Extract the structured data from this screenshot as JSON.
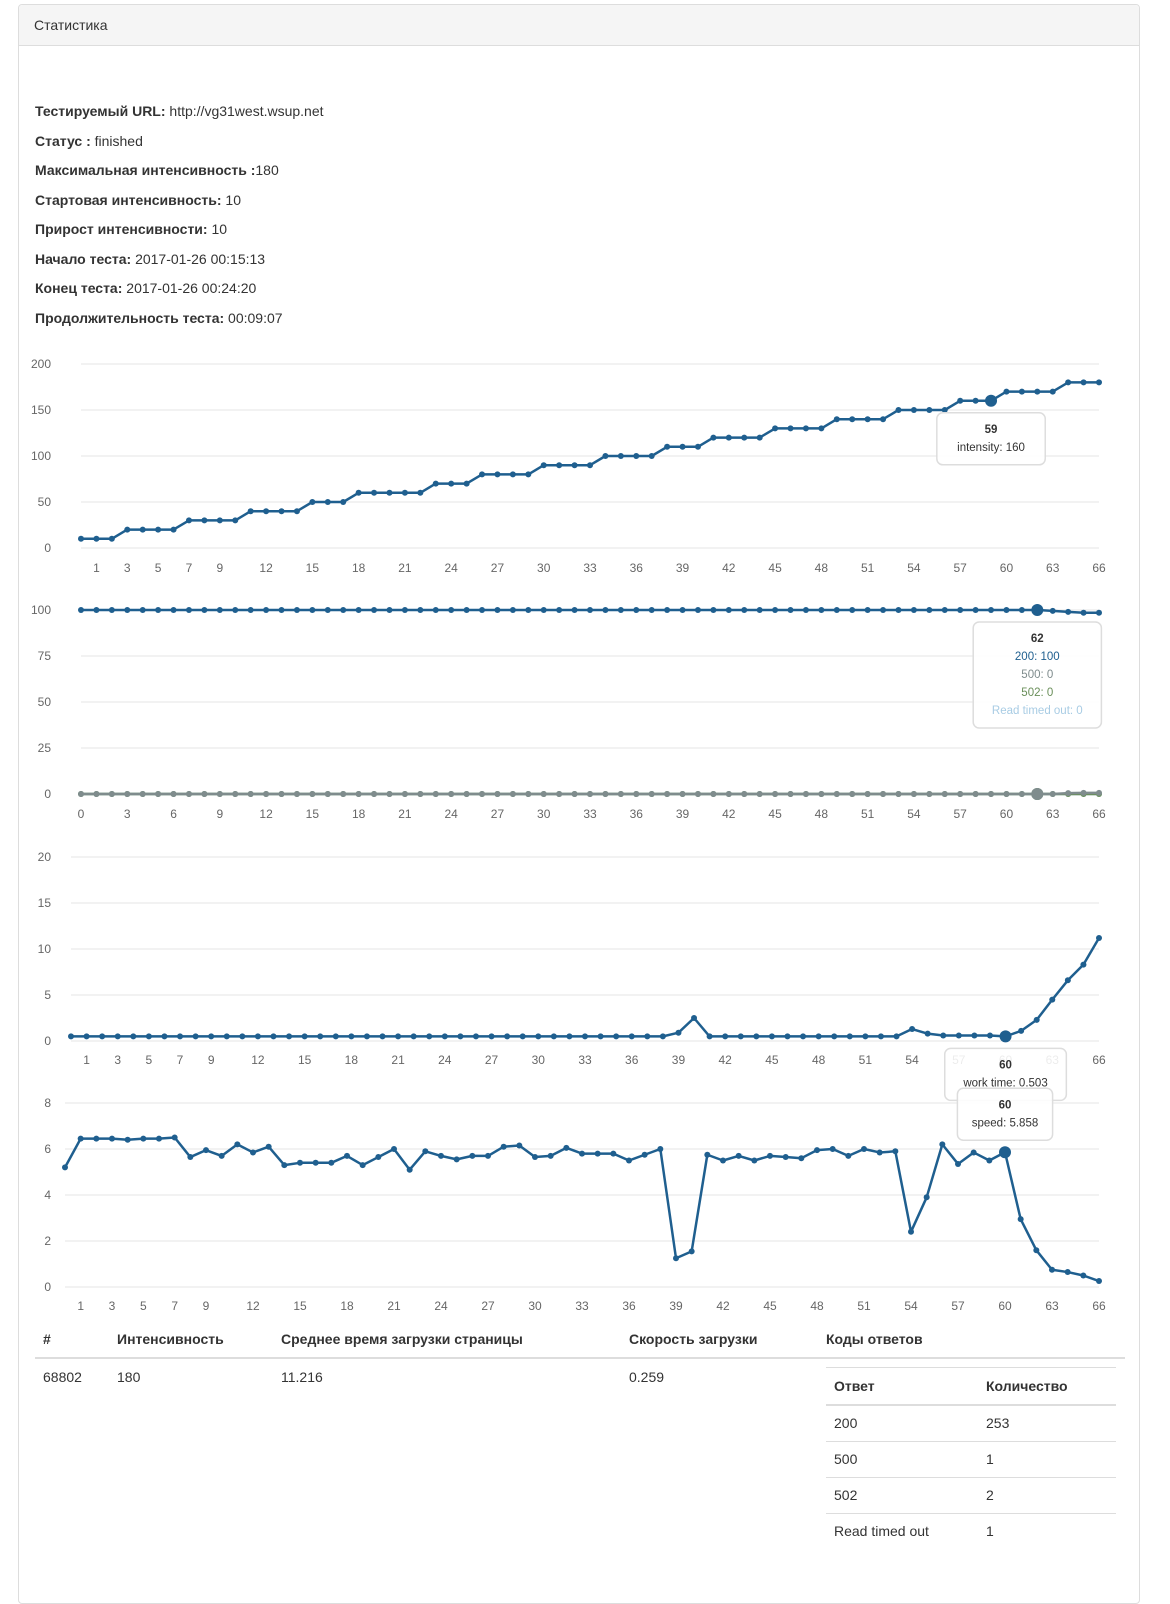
{
  "panel": {
    "title": "Статистика"
  },
  "info": {
    "url_label": "Тестируемый URL:",
    "url_value": "http://vg31west.wsup.net",
    "status_label": "Статус :",
    "status_value": "finished",
    "max_label": "Максимальная интенсивность :",
    "max_value": "180",
    "start_label": "Стартовая интенсивность:",
    "start_value": "10",
    "inc_label": "Прирост интенсивности:",
    "inc_value": "10",
    "begin_label": "Начало теста:",
    "begin_value": "2017-01-26 00:15:13",
    "end_label": "Конец теста:",
    "end_value": "2017-01-26 00:24:20",
    "duration_label": "Продолжительность теста:",
    "duration_value": "00:09:07"
  },
  "colors": {
    "primary": "#1f5f8f",
    "grid": "#e6e6e6",
    "axis_text": "#666666",
    "s500": "#7f8c8d",
    "s502": "#6a8f5a",
    "sread": "#a8cce4"
  },
  "chart_data": [
    {
      "type": "line",
      "id": "intensity",
      "ylim": [
        0,
        200
      ],
      "yticks": [
        0,
        50,
        100,
        150,
        200
      ],
      "xticks": [
        1,
        3,
        5,
        7,
        9,
        12,
        15,
        18,
        21,
        24,
        27,
        30,
        33,
        36,
        39,
        42,
        45,
        48,
        51,
        54,
        57,
        60,
        63,
        66
      ],
      "x_start": 0,
      "x_end": 66,
      "series": [
        {
          "name": "intensity",
          "values": [
            10,
            10,
            10,
            20,
            20,
            20,
            20,
            30,
            30,
            30,
            30,
            40,
            40,
            40,
            40,
            50,
            50,
            50,
            60,
            60,
            60,
            60,
            60,
            70,
            70,
            70,
            80,
            80,
            80,
            80,
            90,
            90,
            90,
            90,
            100,
            100,
            100,
            100,
            110,
            110,
            110,
            120,
            120,
            120,
            120,
            130,
            130,
            130,
            130,
            140,
            140,
            140,
            140,
            150,
            150,
            150,
            150,
            160,
            160,
            160,
            170,
            170,
            170,
            170,
            180,
            180,
            180
          ]
        }
      ],
      "tooltip": {
        "x": 59,
        "title": "59",
        "lines": [
          {
            "label": "intensity",
            "value": "160"
          }
        ]
      }
    },
    {
      "type": "line",
      "id": "response-codes",
      "ylim": [
        0,
        100
      ],
      "yticks": [
        0,
        25,
        50,
        75,
        100
      ],
      "xticks": [
        0,
        3,
        6,
        9,
        12,
        15,
        18,
        21,
        24,
        27,
        30,
        33,
        36,
        39,
        42,
        45,
        48,
        51,
        54,
        57,
        60,
        63,
        66
      ],
      "x_start": 0,
      "x_end": 66,
      "series": [
        {
          "name": "200",
          "values": [
            100,
            100,
            100,
            100,
            100,
            100,
            100,
            100,
            100,
            100,
            100,
            100,
            100,
            100,
            100,
            100,
            100,
            100,
            100,
            100,
            100,
            100,
            100,
            100,
            100,
            100,
            100,
            100,
            100,
            100,
            100,
            100,
            100,
            100,
            100,
            100,
            100,
            100,
            100,
            100,
            100,
            100,
            100,
            100,
            100,
            100,
            100,
            100,
            100,
            100,
            100,
            100,
            100,
            100,
            100,
            100,
            100,
            100,
            100,
            100,
            100,
            100,
            100,
            99.5,
            99,
            98.5,
            98.5
          ]
        },
        {
          "name": "500",
          "values": [
            0,
            0,
            0,
            0,
            0,
            0,
            0,
            0,
            0,
            0,
            0,
            0,
            0,
            0,
            0,
            0,
            0,
            0,
            0,
            0,
            0,
            0,
            0,
            0,
            0,
            0,
            0,
            0,
            0,
            0,
            0,
            0,
            0,
            0,
            0,
            0,
            0,
            0,
            0,
            0,
            0,
            0,
            0,
            0,
            0,
            0,
            0,
            0,
            0,
            0,
            0,
            0,
            0,
            0,
            0,
            0,
            0,
            0,
            0,
            0,
            0,
            0,
            0,
            0,
            0.5,
            0.6,
            0.6
          ]
        },
        {
          "name": "502",
          "values": [
            0,
            0,
            0,
            0,
            0,
            0,
            0,
            0,
            0,
            0,
            0,
            0,
            0,
            0,
            0,
            0,
            0,
            0,
            0,
            0,
            0,
            0,
            0,
            0,
            0,
            0,
            0,
            0,
            0,
            0,
            0,
            0,
            0,
            0,
            0,
            0,
            0,
            0,
            0,
            0,
            0,
            0,
            0,
            0,
            0,
            0,
            0,
            0,
            0,
            0,
            0,
            0,
            0,
            0,
            0,
            0,
            0,
            0,
            0,
            0,
            0,
            0,
            0,
            0,
            0,
            0,
            0
          ]
        },
        {
          "name": "Read timed out",
          "values": [
            0,
            0,
            0,
            0,
            0,
            0,
            0,
            0,
            0,
            0,
            0,
            0,
            0,
            0,
            0,
            0,
            0,
            0,
            0,
            0,
            0,
            0,
            0,
            0,
            0,
            0,
            0,
            0,
            0,
            0,
            0,
            0,
            0,
            0,
            0,
            0,
            0,
            0,
            0,
            0,
            0,
            0,
            0,
            0,
            0,
            0,
            0,
            0,
            0,
            0,
            0,
            0,
            0,
            0,
            0,
            0,
            0,
            0,
            0,
            0,
            0,
            0,
            0,
            0,
            0,
            0,
            0
          ]
        }
      ],
      "tooltip": {
        "x": 62,
        "title": "62",
        "lines": [
          {
            "label": "200",
            "value": "100"
          },
          {
            "label": "500",
            "value": "0"
          },
          {
            "label": "502",
            "value": "0"
          },
          {
            "label": "Read timed out",
            "value": "0"
          }
        ]
      }
    },
    {
      "type": "line",
      "id": "work-time",
      "ylim": [
        0,
        20
      ],
      "yticks": [
        0,
        5,
        10,
        15,
        20
      ],
      "xticks": [
        1,
        3,
        5,
        7,
        9,
        12,
        15,
        18,
        21,
        24,
        27,
        30,
        33,
        36,
        39,
        42,
        45,
        48,
        51,
        54,
        57,
        60,
        63,
        66
      ],
      "x_start": 0,
      "x_end": 66,
      "series": [
        {
          "name": "work time",
          "values": [
            0.5,
            0.5,
            0.5,
            0.5,
            0.5,
            0.5,
            0.5,
            0.5,
            0.5,
            0.5,
            0.5,
            0.5,
            0.5,
            0.5,
            0.5,
            0.5,
            0.5,
            0.5,
            0.5,
            0.5,
            0.5,
            0.5,
            0.5,
            0.5,
            0.5,
            0.5,
            0.5,
            0.5,
            0.5,
            0.5,
            0.5,
            0.5,
            0.5,
            0.5,
            0.5,
            0.5,
            0.5,
            0.5,
            0.5,
            0.9,
            2.5,
            0.5,
            0.5,
            0.5,
            0.5,
            0.5,
            0.5,
            0.5,
            0.5,
            0.5,
            0.5,
            0.5,
            0.5,
            0.5,
            1.3,
            0.8,
            0.6,
            0.6,
            0.6,
            0.6,
            0.503,
            1.1,
            2.3,
            4.5,
            6.6,
            8.3,
            11.2
          ]
        }
      ],
      "tooltip": {
        "x": 60,
        "title": "60",
        "lines": [
          {
            "label": "work time",
            "value": "0.503"
          }
        ]
      }
    },
    {
      "type": "line",
      "id": "speed",
      "ylim": [
        0,
        8
      ],
      "yticks": [
        0,
        2,
        4,
        6,
        8
      ],
      "xticks": [
        1,
        3,
        5,
        7,
        9,
        12,
        15,
        18,
        21,
        24,
        27,
        30,
        33,
        36,
        39,
        42,
        45,
        48,
        51,
        54,
        57,
        60,
        63,
        66
      ],
      "x_start": 0,
      "x_end": 66,
      "series": [
        {
          "name": "speed",
          "values": [
            5.2,
            6.45,
            6.45,
            6.45,
            6.4,
            6.45,
            6.45,
            6.5,
            5.65,
            5.95,
            5.7,
            6.2,
            5.85,
            6.1,
            5.3,
            5.4,
            5.4,
            5.4,
            5.7,
            5.3,
            5.65,
            6.0,
            5.1,
            5.9,
            5.7,
            5.55,
            5.7,
            5.7,
            6.1,
            6.15,
            5.65,
            5.7,
            6.05,
            5.8,
            5.8,
            5.8,
            5.5,
            5.75,
            6.0,
            1.25,
            1.55,
            5.75,
            5.5,
            5.7,
            5.5,
            5.7,
            5.65,
            5.6,
            5.95,
            6.0,
            5.7,
            6.0,
            5.85,
            5.9,
            2.4,
            3.9,
            6.2,
            5.35,
            5.85,
            5.5,
            5.858,
            2.95,
            1.6,
            0.75,
            0.65,
            0.5,
            0.26
          ]
        }
      ],
      "tooltip": {
        "x": 60,
        "title": "60",
        "lines": [
          {
            "label": "speed",
            "value": "5.858"
          }
        ]
      }
    }
  ],
  "summary": {
    "headers": {
      "num": "#",
      "intensity": "Интенсивность",
      "avg_time": "Среднее время загрузки страницы",
      "speed": "Скорость загрузки",
      "codes": "Коды ответов"
    },
    "row": {
      "num": "68802",
      "intensity": "180",
      "avg_time": "11.216",
      "speed": "0.259"
    },
    "codes_table": {
      "headers": {
        "answer": "Ответ",
        "count": "Количество"
      },
      "rows": [
        {
          "answer": "200",
          "count": "253"
        },
        {
          "answer": "500",
          "count": "1"
        },
        {
          "answer": "502",
          "count": "2"
        },
        {
          "answer": "Read timed out",
          "count": "1"
        }
      ]
    }
  }
}
